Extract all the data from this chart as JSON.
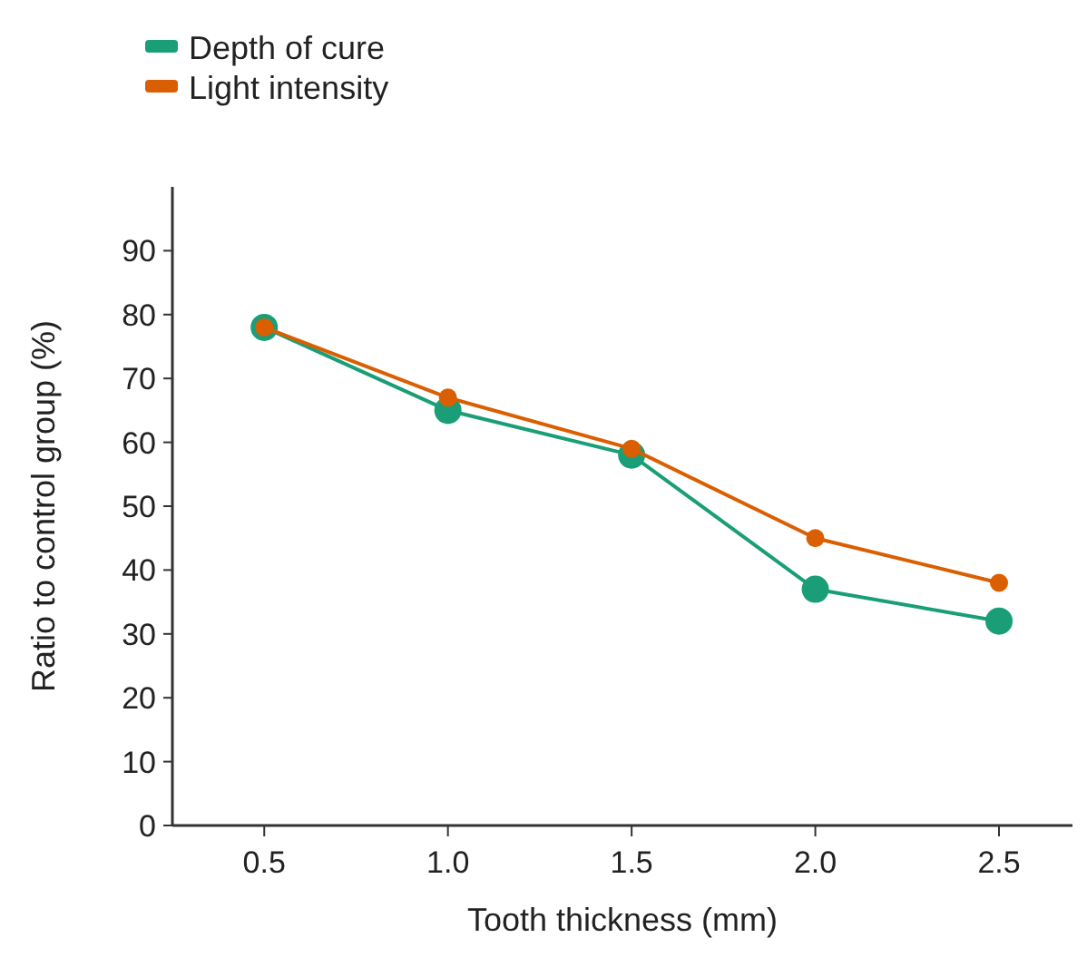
{
  "chart_data": {
    "type": "line",
    "xlabel": "Tooth thickness (mm)",
    "ylabel": "Ratio to control group (%)",
    "x": [
      0.5,
      1.0,
      1.5,
      2.0,
      2.5
    ],
    "series": [
      {
        "name": "Depth of cure",
        "color": "#1a9e77",
        "values": [
          78,
          65,
          58,
          37,
          32
        ]
      },
      {
        "name": "Light intensity",
        "color": "#d95f02",
        "values": [
          78,
          67,
          59,
          45,
          38
        ]
      }
    ],
    "xlim": [
      0.25,
      2.7
    ],
    "xticks": [
      {
        "value": 0.5,
        "label": "0.5"
      },
      {
        "value": 1.0,
        "label": "1.0"
      },
      {
        "value": 1.5,
        "label": "1.5"
      },
      {
        "value": 2.0,
        "label": "2.0"
      },
      {
        "value": 2.5,
        "label": "2.5"
      }
    ],
    "ylim": [
      0,
      100
    ],
    "yticks": [
      0,
      10,
      20,
      30,
      40,
      50,
      60,
      70,
      80,
      90
    ],
    "grid": false,
    "legend": "top left",
    "marker": "circle",
    "line_style": "solid"
  }
}
